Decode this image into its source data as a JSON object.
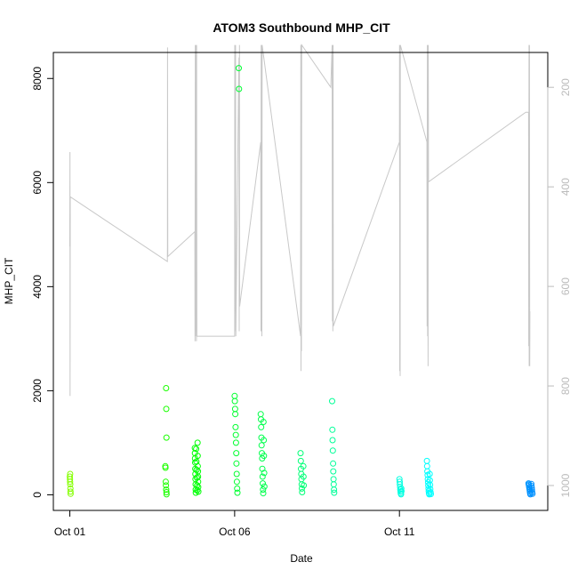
{
  "chart_data": {
    "type": "scatter",
    "title": "ATOM3 Southbound MHP_CIT",
    "xlabel": "Date",
    "ylabel": "MHP_CIT",
    "xlim": [
      "2023-09-30T12:00",
      "2023-10-15T12:00"
    ],
    "ylim": [
      -300,
      8500
    ],
    "y2lim": [
      1050,
      130
    ],
    "x_ticks": [
      {
        "date": "2023-10-01",
        "label": "Oct 01"
      },
      {
        "date": "2023-10-06",
        "label": "Oct 06"
      },
      {
        "date": "2023-10-11",
        "label": "Oct 11"
      }
    ],
    "y_ticks": [
      {
        "value": 0,
        "label": "0"
      },
      {
        "value": 2000,
        "label": "2000"
      },
      {
        "value": 4000,
        "label": "4000"
      },
      {
        "value": 6000,
        "label": "6000"
      },
      {
        "value": 8000,
        "label": "8000"
      }
    ],
    "y2_ticks": [
      {
        "value": 200,
        "label": "200"
      },
      {
        "value": 400,
        "label": "400"
      },
      {
        "value": 600,
        "label": "600"
      },
      {
        "value": 800,
        "label": "800"
      },
      {
        "value": 1000,
        "label": "1000"
      }
    ],
    "series": [
      {
        "role": "points",
        "color_note": "hue gradient green to blue over time",
        "points": [
          [
            "2023-10-01T00:00",
            350
          ],
          [
            "2023-10-01T00:05",
            300
          ],
          [
            "2023-10-01T00:10",
            250
          ],
          [
            "2023-10-01T00:15",
            400
          ],
          [
            "2023-10-01T00:20",
            200
          ],
          [
            "2023-10-01T00:25",
            120
          ],
          [
            "2023-10-01T00:30",
            60
          ],
          [
            "2023-10-01T00:35",
            20
          ],
          [
            "2023-10-03T21:30",
            550
          ],
          [
            "2023-10-03T21:40",
            520
          ],
          [
            "2023-10-03T21:50",
            250
          ],
          [
            "2023-10-03T22:00",
            180
          ],
          [
            "2023-10-03T22:10",
            100
          ],
          [
            "2023-10-03T22:20",
            50
          ],
          [
            "2023-10-03T22:25",
            10
          ],
          [
            "2023-10-03T22:05",
            2050
          ],
          [
            "2023-10-03T22:15",
            1650
          ],
          [
            "2023-10-03T22:20",
            1100
          ],
          [
            "2023-10-04T19:00",
            900
          ],
          [
            "2023-10-04T19:05",
            800
          ],
          [
            "2023-10-04T19:10",
            700
          ],
          [
            "2023-10-04T19:15",
            620
          ],
          [
            "2023-10-04T19:20",
            500
          ],
          [
            "2023-10-04T19:25",
            400
          ],
          [
            "2023-10-04T19:30",
            300
          ],
          [
            "2023-10-04T19:35",
            200
          ],
          [
            "2023-10-04T19:40",
            100
          ],
          [
            "2023-10-04T19:45",
            40
          ],
          [
            "2023-10-04T21:00",
            1000
          ],
          [
            "2023-10-04T21:05",
            750
          ],
          [
            "2023-10-04T21:10",
            550
          ],
          [
            "2023-10-04T21:15",
            450
          ],
          [
            "2023-10-04T21:20",
            350
          ],
          [
            "2023-10-04T21:25",
            250
          ],
          [
            "2023-10-04T21:30",
            150
          ],
          [
            "2023-10-04T21:35",
            60
          ],
          [
            "2023-10-04T20:00",
            880
          ],
          [
            "2023-10-04T20:10",
            640
          ],
          [
            "2023-10-04T20:20",
            480
          ],
          [
            "2023-10-04T20:30",
            330
          ],
          [
            "2023-10-04T20:40",
            180
          ],
          [
            "2023-10-04T20:50",
            90
          ],
          [
            "2023-10-06T00:00",
            1900
          ],
          [
            "2023-10-06T00:10",
            1800
          ],
          [
            "2023-10-06T00:20",
            1650
          ],
          [
            "2023-10-06T00:30",
            1550
          ],
          [
            "2023-10-06T00:40",
            1300
          ],
          [
            "2023-10-06T00:50",
            1150
          ],
          [
            "2023-10-06T01:00",
            1000
          ],
          [
            "2023-10-06T01:10",
            800
          ],
          [
            "2023-10-06T01:20",
            600
          ],
          [
            "2023-10-06T01:30",
            400
          ],
          [
            "2023-10-06T01:40",
            250
          ],
          [
            "2023-10-06T01:50",
            120
          ],
          [
            "2023-10-06T02:00",
            40
          ],
          [
            "2023-10-06T03:00",
            8200
          ],
          [
            "2023-10-06T03:10",
            7800
          ],
          [
            "2023-10-06T19:00",
            1550
          ],
          [
            "2023-10-06T19:10",
            1450
          ],
          [
            "2023-10-06T19:20",
            1300
          ],
          [
            "2023-10-06T19:30",
            1100
          ],
          [
            "2023-10-06T19:40",
            950
          ],
          [
            "2023-10-06T19:50",
            800
          ],
          [
            "2023-10-06T20:00",
            700
          ],
          [
            "2023-10-06T20:10",
            500
          ],
          [
            "2023-10-06T20:20",
            350
          ],
          [
            "2023-10-06T20:30",
            220
          ],
          [
            "2023-10-06T20:40",
            100
          ],
          [
            "2023-10-06T20:50",
            30
          ],
          [
            "2023-10-06T21:00",
            1400
          ],
          [
            "2023-10-06T21:10",
            1050
          ],
          [
            "2023-10-06T21:20",
            750
          ],
          [
            "2023-10-06T21:30",
            420
          ],
          [
            "2023-10-06T21:40",
            160
          ],
          [
            "2023-10-08T00:00",
            800
          ],
          [
            "2023-10-08T00:10",
            650
          ],
          [
            "2023-10-08T00:20",
            500
          ],
          [
            "2023-10-08T00:30",
            400
          ],
          [
            "2023-10-08T00:40",
            300
          ],
          [
            "2023-10-08T00:50",
            200
          ],
          [
            "2023-10-08T01:00",
            120
          ],
          [
            "2023-10-08T01:10",
            50
          ],
          [
            "2023-10-08T02:00",
            550
          ],
          [
            "2023-10-08T02:10",
            350
          ],
          [
            "2023-10-08T02:20",
            180
          ],
          [
            "2023-10-08T23:00",
            1800
          ],
          [
            "2023-10-08T23:10",
            1250
          ],
          [
            "2023-10-08T23:20",
            1050
          ],
          [
            "2023-10-08T23:30",
            850
          ],
          [
            "2023-10-08T23:40",
            600
          ],
          [
            "2023-10-08T23:50",
            450
          ],
          [
            "2023-10-09T00:00",
            300
          ],
          [
            "2023-10-09T00:10",
            200
          ],
          [
            "2023-10-09T00:20",
            100
          ],
          [
            "2023-10-09T00:30",
            40
          ],
          [
            "2023-10-11T00:00",
            300
          ],
          [
            "2023-10-11T00:10",
            250
          ],
          [
            "2023-10-11T00:20",
            200
          ],
          [
            "2023-10-11T00:30",
            150
          ],
          [
            "2023-10-11T00:40",
            100
          ],
          [
            "2023-10-11T00:50",
            60
          ],
          [
            "2023-10-11T01:00",
            30
          ],
          [
            "2023-10-11T01:10",
            10
          ],
          [
            "2023-10-11T01:20",
            120
          ],
          [
            "2023-10-11T01:30",
            70
          ],
          [
            "2023-10-11T20:00",
            650
          ],
          [
            "2023-10-11T20:10",
            550
          ],
          [
            "2023-10-11T20:20",
            450
          ],
          [
            "2023-10-11T20:30",
            380
          ],
          [
            "2023-10-11T20:40",
            300
          ],
          [
            "2023-10-11T20:50",
            240
          ],
          [
            "2023-10-11T21:00",
            180
          ],
          [
            "2023-10-11T21:10",
            120
          ],
          [
            "2023-10-11T21:20",
            70
          ],
          [
            "2023-10-11T21:30",
            30
          ],
          [
            "2023-10-11T21:40",
            10
          ],
          [
            "2023-10-11T22:00",
            400
          ],
          [
            "2023-10-11T22:10",
            280
          ],
          [
            "2023-10-11T22:20",
            190
          ],
          [
            "2023-10-11T22:30",
            110
          ],
          [
            "2023-10-11T22:40",
            50
          ],
          [
            "2023-10-11T22:50",
            15
          ],
          [
            "2023-10-14T22:00",
            220
          ],
          [
            "2023-10-14T22:10",
            200
          ],
          [
            "2023-10-14T22:20",
            180
          ],
          [
            "2023-10-14T22:30",
            150
          ],
          [
            "2023-10-14T22:40",
            120
          ],
          [
            "2023-10-14T22:50",
            90
          ],
          [
            "2023-10-14T23:00",
            60
          ],
          [
            "2023-10-14T23:10",
            30
          ],
          [
            "2023-10-14T23:20",
            10
          ],
          [
            "2023-10-15T00:00",
            210
          ],
          [
            "2023-10-15T00:10",
            170
          ],
          [
            "2023-10-15T00:20",
            130
          ],
          [
            "2023-10-15T00:30",
            90
          ],
          [
            "2023-10-15T00:40",
            50
          ],
          [
            "2023-10-15T00:50",
            20
          ]
        ]
      },
      {
        "role": "line",
        "color": "#c8c8c8",
        "axis": "right",
        "points": [
          [
            "2023-10-01T00:00",
            520
          ],
          [
            "2023-10-01T00:05",
            330
          ],
          [
            "2023-10-01T00:10",
            820
          ],
          [
            "2023-10-01T00:20",
            420
          ],
          [
            "2023-10-03T23:00",
            550
          ],
          [
            "2023-10-03T23:05",
            520
          ],
          [
            "2023-10-03T23:10",
            120
          ],
          [
            "2023-10-03T23:20",
            540
          ],
          [
            "2023-10-04T19:00",
            490
          ],
          [
            "2023-10-04T19:10",
            710
          ],
          [
            "2023-10-04T19:20",
            115
          ],
          [
            "2023-10-04T19:30",
            700
          ],
          [
            "2023-10-04T19:40",
            115
          ],
          [
            "2023-10-04T19:50",
            690
          ],
          [
            "2023-10-04T20:00",
            350
          ],
          [
            "2023-10-04T20:10",
            710
          ],
          [
            "2023-10-04T20:20",
            115
          ],
          [
            "2023-10-04T20:30",
            700
          ],
          [
            "2023-10-06T00:00",
            700
          ],
          [
            "2023-10-06T00:05",
            115
          ],
          [
            "2023-10-06T00:10",
            690
          ],
          [
            "2023-10-06T00:20",
            115
          ],
          [
            "2023-10-06T00:30",
            650
          ],
          [
            "2023-10-06T00:40",
            115
          ],
          [
            "2023-10-06T00:50",
            700
          ],
          [
            "2023-10-06T03:00",
            160
          ],
          [
            "2023-10-06T03:10",
            140
          ],
          [
            "2023-10-06T03:20",
            690
          ],
          [
            "2023-10-06T03:30",
            115
          ],
          [
            "2023-10-06T03:40",
            640
          ],
          [
            "2023-10-06T19:00",
            310
          ],
          [
            "2023-10-06T19:10",
            690
          ],
          [
            "2023-10-06T19:20",
            115
          ],
          [
            "2023-10-06T19:30",
            670
          ],
          [
            "2023-10-06T19:40",
            115
          ],
          [
            "2023-10-06T19:50",
            700
          ],
          [
            "2023-10-06T20:00",
            115
          ],
          [
            "2023-10-08T00:00",
            700
          ],
          [
            "2023-10-08T00:10",
            115
          ],
          [
            "2023-10-08T00:20",
            770
          ],
          [
            "2023-10-08T00:30",
            115
          ],
          [
            "2023-10-08T00:40",
            730
          ],
          [
            "2023-10-08T00:50",
            115
          ],
          [
            "2023-10-08T22:00",
            200
          ],
          [
            "2023-10-08T23:00",
            115
          ],
          [
            "2023-10-08T23:10",
            670
          ],
          [
            "2023-10-08T23:20",
            115
          ],
          [
            "2023-10-08T23:30",
            690
          ],
          [
            "2023-10-08T23:40",
            115
          ],
          [
            "2023-10-08T23:50",
            680
          ],
          [
            "2023-10-11T00:00",
            310
          ],
          [
            "2023-10-11T00:05",
            115
          ],
          [
            "2023-10-11T00:10",
            770
          ],
          [
            "2023-10-11T00:20",
            115
          ],
          [
            "2023-10-11T00:30",
            780
          ],
          [
            "2023-10-11T00:40",
            115
          ],
          [
            "2023-10-11T20:00",
            310
          ],
          [
            "2023-10-11T20:10",
            680
          ],
          [
            "2023-10-11T20:20",
            115
          ],
          [
            "2023-10-11T20:30",
            700
          ],
          [
            "2023-10-11T20:40",
            115
          ],
          [
            "2023-10-11T20:50",
            760
          ],
          [
            "2023-10-11T21:00",
            115
          ],
          [
            "2023-10-11T21:10",
            390
          ],
          [
            "2023-10-14T20:00",
            250
          ],
          [
            "2023-10-14T22:00",
            250
          ],
          [
            "2023-10-14T22:10",
            720
          ],
          [
            "2023-10-14T22:20",
            115
          ],
          [
            "2023-10-14T22:30",
            760
          ],
          [
            "2023-10-14T22:40",
            115
          ],
          [
            "2023-10-14T22:50",
            760
          ],
          [
            "2023-10-14T23:00",
            650
          ]
        ]
      }
    ]
  }
}
